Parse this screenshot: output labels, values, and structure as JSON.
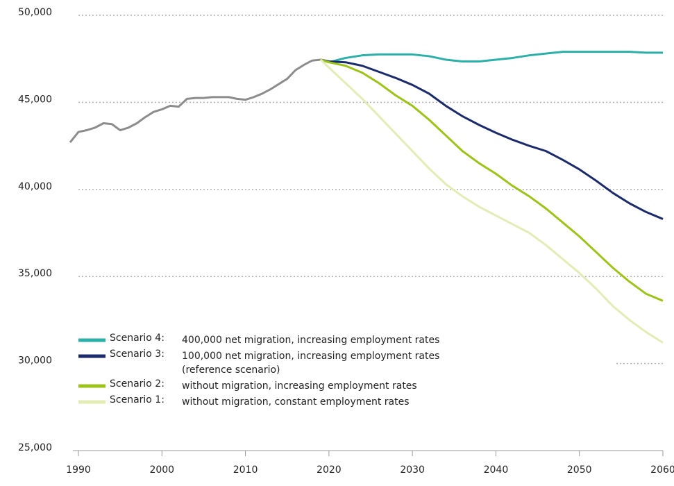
{
  "chart_data": {
    "type": "line",
    "xlim": [
      1990,
      2060
    ],
    "xticks": [
      1990,
      2000,
      2010,
      2020,
      2030,
      2040,
      2050,
      2060
    ],
    "ylim": [
      25000,
      50000
    ],
    "yticks": [
      {
        "value": 25000,
        "label": "25,000"
      },
      {
        "value": 30000,
        "label": "30,000"
      },
      {
        "value": 35000,
        "label": "35,000"
      },
      {
        "value": 40000,
        "label": "40,000"
      },
      {
        "value": 45000,
        "label": "45,000"
      },
      {
        "value": 50000,
        "label": "50,000"
      }
    ],
    "grid": true,
    "series": [
      {
        "color": "#8c8c8c",
        "x": [
          1989,
          1990,
          1991,
          1992,
          1993,
          1994,
          1995,
          1996,
          1997,
          1998,
          1999,
          2000,
          2001,
          2002,
          2003,
          2004,
          2005,
          2006,
          2007,
          2008,
          2009,
          2010,
          2011,
          2012,
          2013,
          2014,
          2015,
          2016,
          2017,
          2018,
          2019
        ],
        "values": [
          42700,
          43300,
          43400,
          43550,
          43800,
          43750,
          43400,
          43550,
          43800,
          44150,
          44450,
          44600,
          44800,
          44750,
          45200,
          45250,
          45250,
          45300,
          45300,
          45300,
          45200,
          45150,
          45300,
          45500,
          45750,
          46050,
          46350,
          46850,
          47150,
          47400,
          47450
        ]
      },
      {
        "name": "Scenario 4:",
        "description": [
          "400,000 net migration, increasing employment rates"
        ],
        "color": "#2ab0a8",
        "x": [
          2019,
          2020,
          2022,
          2024,
          2026,
          2028,
          2030,
          2032,
          2034,
          2036,
          2038,
          2040,
          2042,
          2044,
          2046,
          2048,
          2050,
          2052,
          2054,
          2056,
          2058,
          2060
        ],
        "values": [
          47450,
          47300,
          47550,
          47700,
          47750,
          47750,
          47750,
          47650,
          47450,
          47350,
          47350,
          47450,
          47550,
          47700,
          47800,
          47900,
          47900,
          47900,
          47900,
          47900,
          47850,
          47850
        ]
      },
      {
        "name": "Scenario 3:",
        "description": [
          "100,000 net migration, increasing employment rates",
          "(reference scenario)"
        ],
        "color": "#1b2a6b",
        "x": [
          2019,
          2020,
          2022,
          2024,
          2026,
          2028,
          2030,
          2032,
          2034,
          2036,
          2038,
          2040,
          2042,
          2044,
          2046,
          2048,
          2050,
          2052,
          2054,
          2056,
          2058,
          2060
        ],
        "values": [
          47450,
          47350,
          47300,
          47100,
          46750,
          46400,
          46000,
          45500,
          44800,
          44200,
          43700,
          43250,
          42850,
          42500,
          42200,
          41700,
          41150,
          40500,
          39800,
          39200,
          38700,
          38300
        ]
      },
      {
        "name": "Scenario 2:",
        "description": [
          "without migration, increasing employment rates"
        ],
        "color": "#9dc318",
        "x": [
          2019,
          2020,
          2022,
          2024,
          2026,
          2028,
          2030,
          2032,
          2034,
          2036,
          2038,
          2040,
          2042,
          2044,
          2046,
          2048,
          2050,
          2052,
          2054,
          2056,
          2058,
          2060
        ],
        "values": [
          47450,
          47300,
          47100,
          46700,
          46100,
          45400,
          44800,
          44000,
          43100,
          42200,
          41500,
          40900,
          40200,
          39600,
          38900,
          38100,
          37300,
          36400,
          35500,
          34700,
          34000,
          33600
        ]
      },
      {
        "name": "Scenario 1:",
        "description": [
          "without migration, constant employment rates"
        ],
        "color": "#e3ecb5",
        "x": [
          2019,
          2020,
          2022,
          2024,
          2026,
          2028,
          2030,
          2032,
          2034,
          2036,
          2038,
          2040,
          2042,
          2044,
          2046,
          2048,
          2050,
          2052,
          2054,
          2056,
          2058,
          2060
        ],
        "values": [
          47450,
          47000,
          46100,
          45200,
          44200,
          43200,
          42200,
          41200,
          40300,
          39600,
          39000,
          38500,
          38000,
          37500,
          36800,
          36000,
          35200,
          34300,
          33300,
          32500,
          31800,
          31200
        ]
      }
    ]
  }
}
